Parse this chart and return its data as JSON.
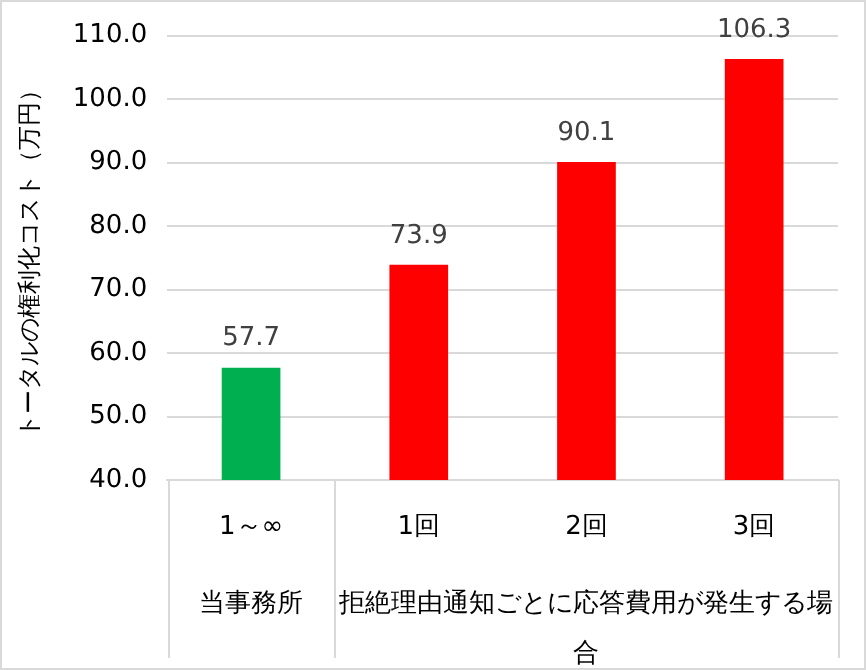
{
  "chart_data": {
    "type": "bar",
    "ylabel": "トータルの権利化コスト（万円）",
    "categories": [
      "1～∞",
      "1回",
      "2回",
      "3回"
    ],
    "values": [
      57.7,
      73.9,
      90.1,
      106.3
    ],
    "colors": [
      "#00b050",
      "#ff0000",
      "#ff0000",
      "#ff0000"
    ],
    "ylim": [
      40,
      110
    ],
    "yticks": [
      {
        "value": 40,
        "label": "40.0"
      },
      {
        "value": 50,
        "label": "50.0"
      },
      {
        "value": 60,
        "label": "60.0"
      },
      {
        "value": 70,
        "label": "70.0"
      },
      {
        "value": 80,
        "label": "80.0"
      },
      {
        "value": 90,
        "label": "90.0"
      },
      {
        "value": 100,
        "label": "100.0"
      },
      {
        "value": 110,
        "label": "110.0"
      }
    ],
    "annotations": [
      "当事務所",
      "拒絶理由通知ごとに応答費用が発生する場合"
    ],
    "data_labels": true,
    "grid": "y",
    "legend": false
  }
}
